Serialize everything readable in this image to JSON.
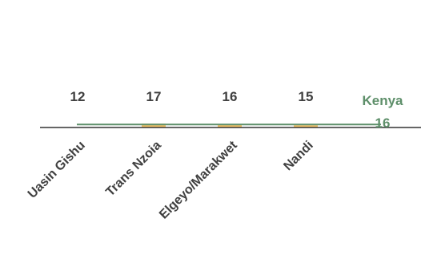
{
  "chart_data": {
    "type": "bar",
    "categories": [
      "Uasin Gishu",
      "Trans Nzoia",
      "Elgeyo/Marakwet",
      "Nandi"
    ],
    "values": [
      12,
      17,
      16,
      15
    ],
    "value_labels": [
      "12",
      "17",
      "16",
      "15"
    ],
    "reference_line": {
      "label": "Kenya",
      "value": 16,
      "value_label": "16"
    },
    "ylim": [
      0,
      17
    ],
    "colors": {
      "highlight": "#d0603a",
      "bar": "#f5c46a",
      "reference": "#5e8f6a",
      "axis": "#333333",
      "text": "#404040"
    },
    "title": "",
    "xlabel": "",
    "ylabel": ""
  }
}
